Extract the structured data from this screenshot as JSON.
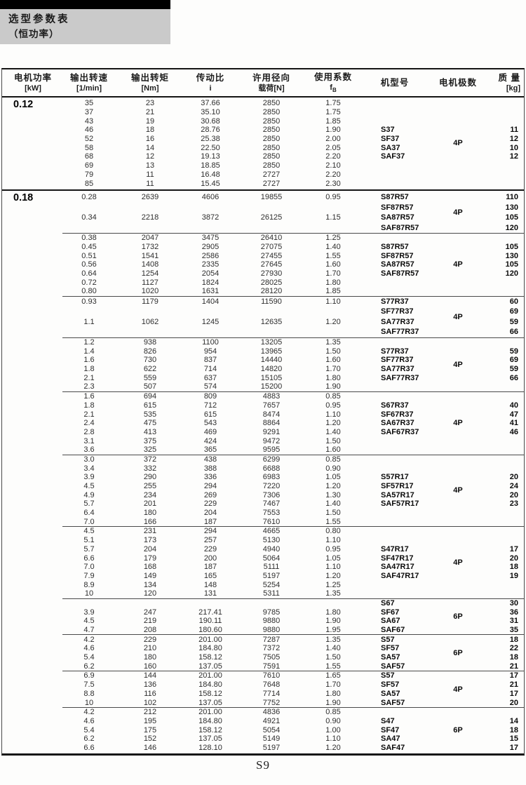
{
  "page": {
    "title_line1": "选型参数表",
    "title_line2": "（恒功率）",
    "page_number": "S9"
  },
  "table": {
    "columns": [
      {
        "label": "电机功率",
        "unit": "[kW]"
      },
      {
        "label": "输出转速",
        "unit": "[1/min]"
      },
      {
        "label": "输出转矩",
        "unit": "[Nm]"
      },
      {
        "label": "传动比",
        "unit": "i"
      },
      {
        "label": "许用径向",
        "unit": "载荷[N]"
      },
      {
        "label": "使用系数",
        "unit": "fB"
      },
      {
        "label": "机型号",
        "unit": ""
      },
      {
        "label": "电机极数",
        "unit": ""
      },
      {
        "label": "质 量",
        "unit": "[kg]"
      }
    ],
    "row_format": [
      "speed",
      "torque",
      "ratio",
      "load",
      "fs",
      "model",
      "mass"
    ],
    "sections": [
      {
        "power": "0.12",
        "blocks": [
          {
            "poles": "4P",
            "spaced": false,
            "rows": [
              [
                "35",
                "23",
                "37.66",
                "2850",
                "1.75",
                "",
                ""
              ],
              [
                "37",
                "21",
                "35.10",
                "2850",
                "1.75",
                "",
                ""
              ],
              [
                "43",
                "19",
                "30.68",
                "2850",
                "1.85",
                "",
                ""
              ],
              [
                "46",
                "18",
                "28.76",
                "2850",
                "1.90",
                "S37",
                "11"
              ],
              [
                "52",
                "16",
                "25.38",
                "2850",
                "2.00",
                "SF37",
                "12"
              ],
              [
                "58",
                "14",
                "22.50",
                "2850",
                "2.05",
                "SA37",
                "10"
              ],
              [
                "68",
                "12",
                "19.13",
                "2850",
                "2.20",
                "SAF37",
                "12"
              ],
              [
                "69",
                "13",
                "18.85",
                "2850",
                "2.10",
                "",
                ""
              ],
              [
                "79",
                "11",
                "16.48",
                "2727",
                "2.20",
                "",
                ""
              ],
              [
                "85",
                "11",
                "15.45",
                "2727",
                "2.30",
                "",
                ""
              ]
            ]
          }
        ]
      },
      {
        "power": "0.18",
        "blocks": [
          {
            "poles": "4P",
            "spaced": true,
            "rows": [
              [
                "0.28",
                "2639",
                "4606",
                "19855",
                "0.95",
                "S87R57",
                "110"
              ],
              [
                "",
                "",
                "",
                "",
                "",
                "SF87R57",
                "130"
              ],
              [
                "0.34",
                "2218",
                "3872",
                "26125",
                "1.15",
                "SA87R57",
                "105"
              ],
              [
                "",
                "",
                "",
                "",
                "",
                "SAF87R57",
                "120"
              ]
            ]
          },
          {
            "poles": "4P",
            "spaced": false,
            "rows": [
              [
                "0.38",
                "2047",
                "3475",
                "26410",
                "1.25",
                "",
                ""
              ],
              [
                "0.45",
                "1732",
                "2905",
                "27075",
                "1.40",
                "S87R57",
                "105"
              ],
              [
                "0.51",
                "1541",
                "2586",
                "27455",
                "1.55",
                "SF87R57",
                "130"
              ],
              [
                "0.56",
                "1408",
                "2335",
                "27645",
                "1.60",
                "SA87R57",
                "105"
              ],
              [
                "0.64",
                "1254",
                "2054",
                "27930",
                "1.70",
                "SAF87R57",
                "120"
              ],
              [
                "0.72",
                "1127",
                "1824",
                "28025",
                "1.80",
                "",
                ""
              ],
              [
                "0.80",
                "1020",
                "1631",
                "28120",
                "1.85",
                "",
                ""
              ]
            ]
          },
          {
            "poles": "4P",
            "spaced": true,
            "rows": [
              [
                "0.93",
                "1179",
                "1404",
                "11590",
                "1.10",
                "S77R37",
                "60"
              ],
              [
                "",
                "",
                "",
                "",
                "",
                "SF77R37",
                "69"
              ],
              [
                "1.1",
                "1062",
                "1245",
                "12635",
                "1.20",
                "SA77R37",
                "59"
              ],
              [
                "",
                "",
                "",
                "",
                "",
                "SAF77R37",
                "66"
              ]
            ]
          },
          {
            "poles": "4P",
            "spaced": false,
            "rows": [
              [
                "1.2",
                "938",
                "1100",
                "13205",
                "1.35",
                "",
                ""
              ],
              [
                "1.4",
                "826",
                "954",
                "13965",
                "1.50",
                "S77R37",
                "59"
              ],
              [
                "1.6",
                "730",
                "837",
                "14440",
                "1.60",
                "SF77R37",
                "69"
              ],
              [
                "1.8",
                "622",
                "714",
                "14820",
                "1.70",
                "SA77R37",
                "59"
              ],
              [
                "2.1",
                "559",
                "637",
                "15105",
                "1.80",
                "SAF77R37",
                "66"
              ],
              [
                "2.3",
                "507",
                "574",
                "15200",
                "1.90",
                "",
                ""
              ]
            ]
          },
          {
            "poles": "4P",
            "spaced": false,
            "rows": [
              [
                "1.6",
                "694",
                "809",
                "4883",
                "0.85",
                "",
                ""
              ],
              [
                "1.8",
                "615",
                "712",
                "7657",
                "0.95",
                "S67R37",
                "40"
              ],
              [
                "2.1",
                "535",
                "615",
                "8474",
                "1.10",
                "SF67R37",
                "47"
              ],
              [
                "2.4",
                "475",
                "543",
                "8864",
                "1.20",
                "SA67R37",
                "41"
              ],
              [
                "2.8",
                "413",
                "469",
                "9291",
                "1.40",
                "SAF67R37",
                "46"
              ],
              [
                "3.1",
                "375",
                "424",
                "9472",
                "1.50",
                "",
                ""
              ],
              [
                "3.6",
                "325",
                "365",
                "9595",
                "1.60",
                "",
                ""
              ]
            ]
          },
          {
            "poles": "4P",
            "spaced": false,
            "rows": [
              [
                "3.0",
                "372",
                "438",
                "6299",
                "0.85",
                "",
                ""
              ],
              [
                "3.4",
                "332",
                "388",
                "6688",
                "0.90",
                "",
                ""
              ],
              [
                "3.9",
                "290",
                "336",
                "6983",
                "1.05",
                "S57R17",
                "20"
              ],
              [
                "4.5",
                "255",
                "294",
                "7220",
                "1.20",
                "SF57R17",
                "24"
              ],
              [
                "4.9",
                "234",
                "269",
                "7306",
                "1.30",
                "SA57R17",
                "20"
              ],
              [
                "5.7",
                "201",
                "229",
                "7467",
                "1.40",
                "SAF57R17",
                "23"
              ],
              [
                "6.4",
                "180",
                "204",
                "7553",
                "1.50",
                "",
                ""
              ],
              [
                "7.0",
                "166",
                "187",
                "7610",
                "1.55",
                "",
                ""
              ]
            ]
          },
          {
            "poles": "4P",
            "spaced": false,
            "rows": [
              [
                "4.5",
                "231",
                "294",
                "4665",
                "0.80",
                "",
                ""
              ],
              [
                "5.1",
                "173",
                "257",
                "5130",
                "1.10",
                "",
                ""
              ],
              [
                "5.7",
                "204",
                "229",
                "4940",
                "0.95",
                "S47R17",
                "17"
              ],
              [
                "6.6",
                "179",
                "200",
                "5064",
                "1.05",
                "SF47R17",
                "20"
              ],
              [
                "7.0",
                "168",
                "187",
                "5111",
                "1.10",
                "SA47R17",
                "18"
              ],
              [
                "7.9",
                "149",
                "165",
                "5197",
                "1.20",
                "SAF47R17",
                "19"
              ],
              [
                "8.9",
                "134",
                "148",
                "5254",
                "1.25",
                "",
                ""
              ],
              [
                "10",
                "120",
                "131",
                "5311",
                "1.35",
                "",
                ""
              ]
            ]
          },
          {
            "poles": "6P",
            "spaced": false,
            "rows": [
              [
                "",
                "",
                "",
                "",
                "",
                "S67",
                "30"
              ],
              [
                "3.9",
                "247",
                "217.41",
                "9785",
                "1.80",
                "SF67",
                "36"
              ],
              [
                "4.5",
                "219",
                "190.11",
                "9880",
                "1.90",
                "SA67",
                "31"
              ],
              [
                "4.7",
                "208",
                "180.60",
                "9880",
                "1.95",
                "SAF67",
                "35"
              ]
            ]
          },
          {
            "poles": "6P",
            "spaced": false,
            "rows": [
              [
                "4.2",
                "229",
                "201.00",
                "7287",
                "1.35",
                "S57",
                "18"
              ],
              [
                "4.6",
                "210",
                "184.80",
                "7372",
                "1.40",
                "SF57",
                "22"
              ],
              [
                "5.4",
                "180",
                "158.12",
                "7505",
                "1.50",
                "SA57",
                "18"
              ],
              [
                "6.2",
                "160",
                "137.05",
                "7591",
                "1.55",
                "SAF57",
                "21"
              ]
            ]
          },
          {
            "poles": "4P",
            "spaced": false,
            "rows": [
              [
                "6.9",
                "144",
                "201.00",
                "7610",
                "1.65",
                "S57",
                "17"
              ],
              [
                "7.5",
                "136",
                "184.80",
                "7648",
                "1.70",
                "SF57",
                "21"
              ],
              [
                "8.8",
                "116",
                "158.12",
                "7714",
                "1.80",
                "SA57",
                "17"
              ],
              [
                "10",
                "102",
                "137.05",
                "7752",
                "1.90",
                "SAF57",
                "20"
              ]
            ]
          },
          {
            "poles": "6P",
            "spaced": false,
            "rows": [
              [
                "4.2",
                "212",
                "201.00",
                "4836",
                "0.85",
                "",
                ""
              ],
              [
                "4.6",
                "195",
                "184.80",
                "4921",
                "0.90",
                "S47",
                "14"
              ],
              [
                "5.4",
                "175",
                "158.12",
                "5054",
                "1.00",
                "SF47",
                "18"
              ],
              [
                "6.2",
                "152",
                "137.05",
                "5149",
                "1.10",
                "SA47",
                "15"
              ],
              [
                "6.6",
                "146",
                "128.10",
                "5197",
                "1.20",
                "SAF47",
                "17"
              ]
            ]
          }
        ]
      }
    ]
  }
}
